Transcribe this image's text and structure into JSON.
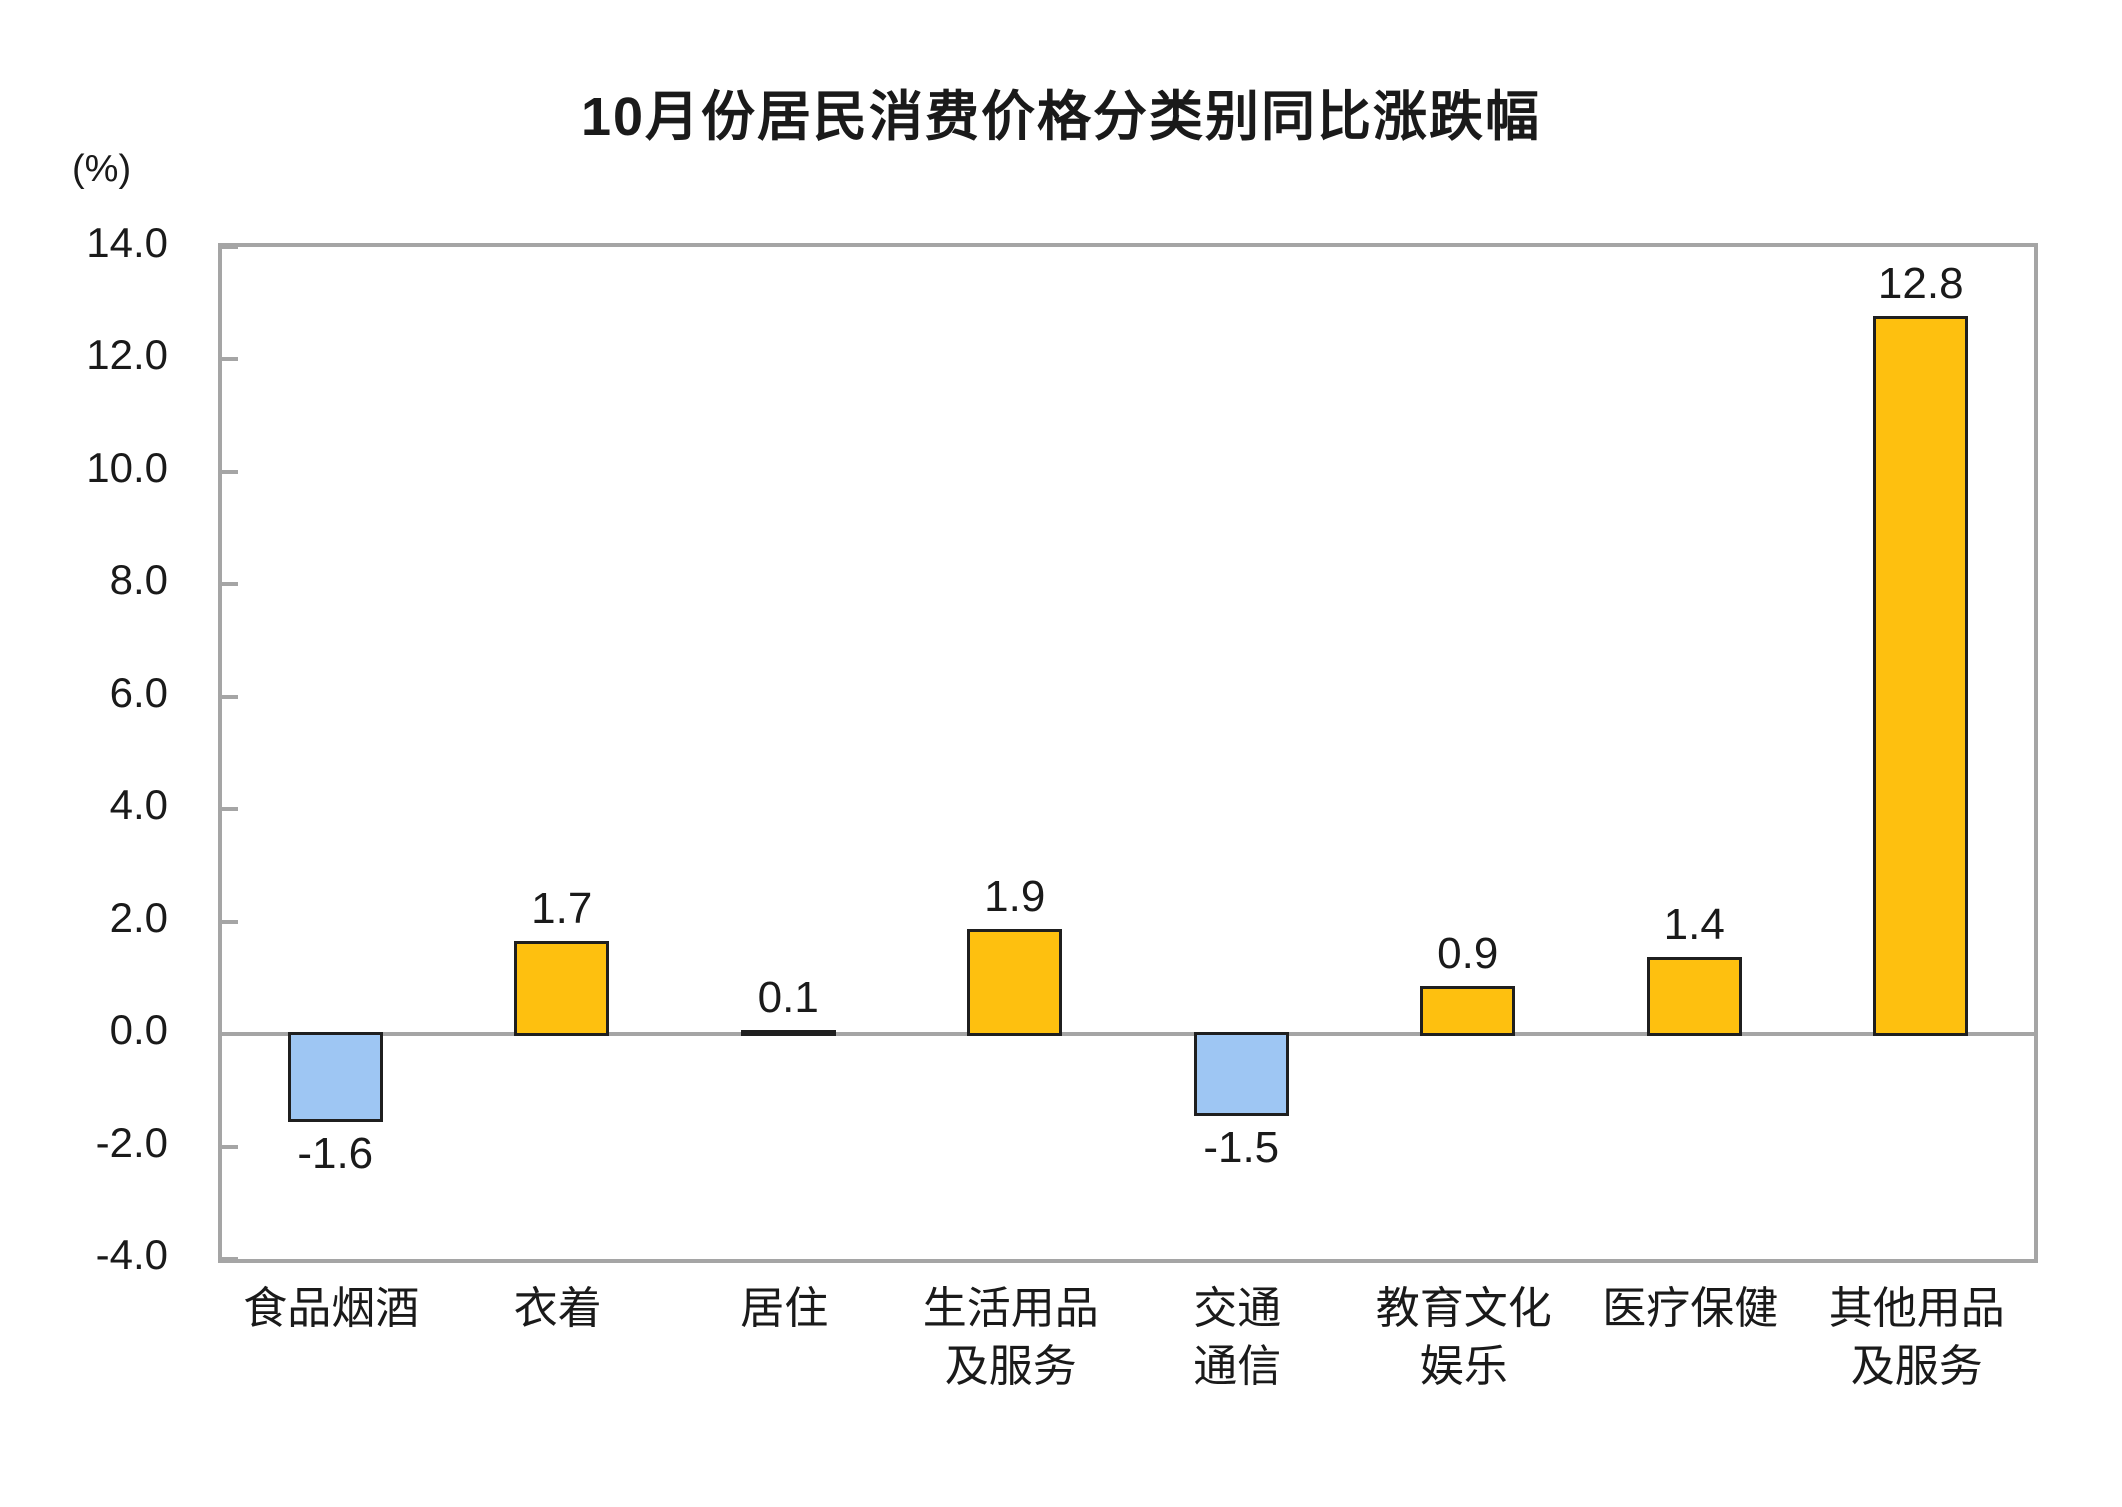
{
  "chart_data": {
    "type": "bar",
    "title": "10月份居民消费价格分类别同比涨跌幅",
    "unit_label": "(%)",
    "categories": [
      "食品烟酒",
      "衣着",
      "居住",
      "生活用品及服务",
      "交通通信",
      "教育文化娱乐",
      "医疗保健",
      "其他用品及服务"
    ],
    "category_display": [
      "食品烟酒",
      "衣着",
      "居住",
      "生活用品\n及服务",
      "交通\n通信",
      "教育文化\n娱乐",
      "医疗保健",
      "其他用品\n及服务"
    ],
    "values": [
      -1.6,
      1.7,
      0.1,
      1.9,
      -1.5,
      0.9,
      1.4,
      12.8
    ],
    "value_labels": [
      "-1.6",
      "1.7",
      "0.1",
      "1.9",
      "-1.5",
      "0.9",
      "1.4",
      "12.8"
    ],
    "ylim": [
      -4.0,
      14.0
    ],
    "ytick_interval": 2.0,
    "ytick_labels": [
      "14.0",
      "12.0",
      "10.0",
      "8.0",
      "6.0",
      "4.0",
      "2.0",
      "0.0",
      "-2.0",
      "-4.0"
    ],
    "xlabel": "",
    "ylabel": "(%)",
    "grid": false,
    "legend": false,
    "colors": {
      "positive_bar": "#FEC00F",
      "negative_bar": "#9EC6F3",
      "bar_border": "#1F1F1F",
      "axis": "#A5A5A5",
      "text": "#1a1a1a",
      "background": "#ffffff"
    }
  }
}
